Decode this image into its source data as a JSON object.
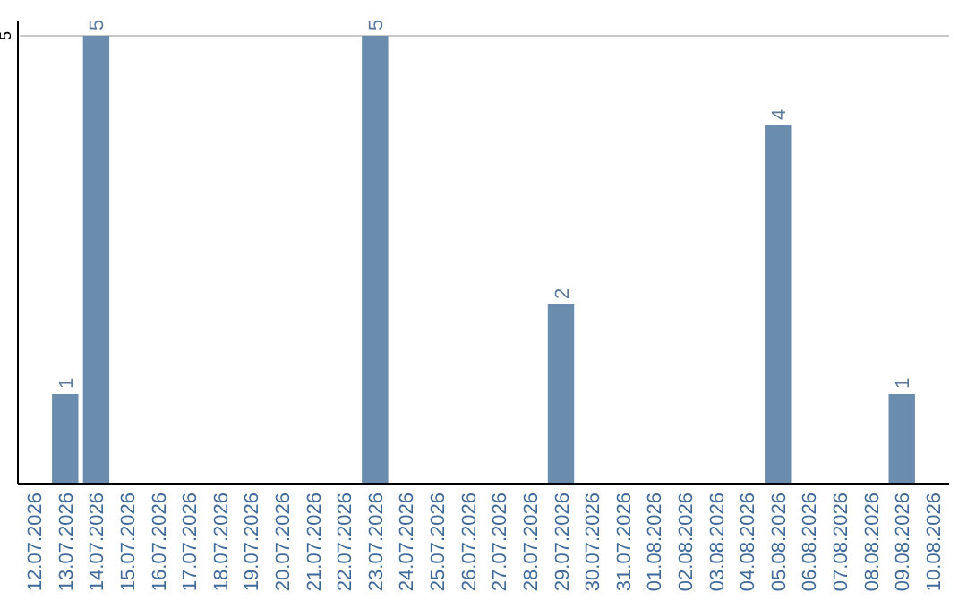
{
  "chart_data": {
    "type": "bar",
    "categories": [
      "12.07.2026",
      "13.07.2026",
      "14.07.2026",
      "15.07.2026",
      "16.07.2026",
      "17.07.2026",
      "18.07.2026",
      "19.07.2026",
      "20.07.2026",
      "21.07.2026",
      "22.07.2026",
      "23.07.2026",
      "24.07.2026",
      "25.07.2026",
      "26.07.2026",
      "27.07.2026",
      "28.07.2026",
      "29.07.2026",
      "30.07.2026",
      "31.07.2026",
      "01.08.2026",
      "02.08.2026",
      "03.08.2026",
      "04.08.2026",
      "05.08.2026",
      "06.08.2026",
      "07.08.2026",
      "08.08.2026",
      "09.08.2026",
      "10.08.2026"
    ],
    "values": [
      0,
      1,
      5,
      0,
      0,
      0,
      0,
      0,
      0,
      0,
      0,
      5,
      0,
      0,
      0,
      0,
      0,
      2,
      0,
      0,
      0,
      0,
      0,
      0,
      4,
      0,
      0,
      0,
      1,
      0
    ],
    "value_labels": [
      null,
      "1",
      "5",
      null,
      null,
      null,
      null,
      null,
      null,
      null,
      null,
      "5",
      null,
      null,
      null,
      null,
      null,
      "2",
      null,
      null,
      null,
      null,
      null,
      null,
      "4",
      null,
      null,
      null,
      "1",
      null
    ],
    "color": "#6a8cad",
    "ylim": [
      0,
      5
    ],
    "yticks": [
      5
    ],
    "ref_lines": [
      {
        "axis": "y",
        "value": 5,
        "color": "#c8c8c8"
      }
    ]
  }
}
